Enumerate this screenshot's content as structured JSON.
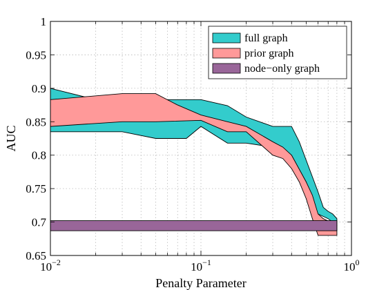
{
  "chart_data": {
    "type": "area",
    "xlabel": "Penalty Parameter",
    "ylabel": "AUC",
    "xscale": "log",
    "xlim": [
      0.01,
      1
    ],
    "ylim": [
      0.65,
      1
    ],
    "grid": true,
    "legend_position": "top-right",
    "x_ticks": [
      {
        "value": 0.01,
        "base": "10",
        "exp": "−2"
      },
      {
        "value": 0.1,
        "base": "10",
        "exp": "−1"
      },
      {
        "value": 1,
        "base": "10",
        "exp": "0"
      }
    ],
    "y_ticks": [
      {
        "value": 0.65,
        "label": "0.65"
      },
      {
        "value": 0.7,
        "label": "0.7"
      },
      {
        "value": 0.75,
        "label": "0.75"
      },
      {
        "value": 0.8,
        "label": "0.8"
      },
      {
        "value": 0.85,
        "label": "0.85"
      },
      {
        "value": 0.9,
        "label": "0.9"
      },
      {
        "value": 0.95,
        "label": "0.95"
      },
      {
        "value": 1,
        "label": "1"
      }
    ],
    "series": [
      {
        "name": "full graph",
        "color": "#33cccc",
        "upper": [
          [
            0.01,
            0.9
          ],
          [
            0.02,
            0.883
          ],
          [
            0.05,
            0.883
          ],
          [
            0.1,
            0.883
          ],
          [
            0.15,
            0.874
          ],
          [
            0.2,
            0.857
          ],
          [
            0.3,
            0.843
          ],
          [
            0.4,
            0.843
          ],
          [
            0.45,
            0.82
          ],
          [
            0.6,
            0.745
          ],
          [
            0.65,
            0.722
          ],
          [
            0.7,
            0.716
          ],
          [
            0.75,
            0.712
          ],
          [
            0.8,
            0.705
          ]
        ],
        "lower": [
          [
            0.01,
            0.835
          ],
          [
            0.03,
            0.835
          ],
          [
            0.05,
            0.825
          ],
          [
            0.08,
            0.825
          ],
          [
            0.1,
            0.843
          ],
          [
            0.15,
            0.818
          ],
          [
            0.2,
            0.818
          ],
          [
            0.3,
            0.812
          ],
          [
            0.4,
            0.8
          ],
          [
            0.5,
            0.76
          ],
          [
            0.55,
            0.73
          ],
          [
            0.6,
            0.712
          ],
          [
            0.7,
            0.705
          ],
          [
            0.8,
            0.695
          ]
        ]
      },
      {
        "name": "prior graph",
        "color": "#ff9999",
        "upper": [
          [
            0.01,
            0.883
          ],
          [
            0.03,
            0.892
          ],
          [
            0.05,
            0.892
          ],
          [
            0.07,
            0.875
          ],
          [
            0.1,
            0.86
          ],
          [
            0.15,
            0.85
          ],
          [
            0.2,
            0.843
          ],
          [
            0.3,
            0.82
          ],
          [
            0.35,
            0.812
          ],
          [
            0.4,
            0.8
          ],
          [
            0.5,
            0.76
          ],
          [
            0.55,
            0.74
          ],
          [
            0.6,
            0.712
          ],
          [
            0.65,
            0.705
          ],
          [
            0.8,
            0.695
          ]
        ],
        "lower": [
          [
            0.01,
            0.843
          ],
          [
            0.03,
            0.85
          ],
          [
            0.05,
            0.85
          ],
          [
            0.1,
            0.852
          ],
          [
            0.15,
            0.835
          ],
          [
            0.2,
            0.835
          ],
          [
            0.3,
            0.8
          ],
          [
            0.35,
            0.795
          ],
          [
            0.4,
            0.78
          ],
          [
            0.45,
            0.76
          ],
          [
            0.5,
            0.735
          ],
          [
            0.55,
            0.705
          ],
          [
            0.6,
            0.68
          ],
          [
            0.8,
            0.68
          ]
        ]
      },
      {
        "name": "node−only graph",
        "color": "#996699",
        "upper": [
          [
            0.01,
            0.702
          ],
          [
            0.8,
            0.702
          ]
        ],
        "lower": [
          [
            0.01,
            0.687
          ],
          [
            0.8,
            0.687
          ]
        ]
      }
    ]
  }
}
